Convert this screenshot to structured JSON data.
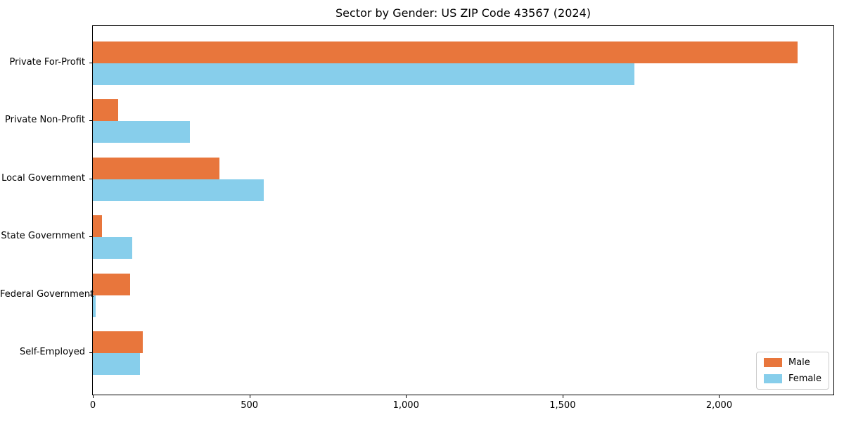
{
  "figure": {
    "title": "Sector by Gender: US ZIP Code 43567 (2024)"
  },
  "chart_data": {
    "type": "bar",
    "orientation": "horizontal",
    "title": "Sector by Gender: US ZIP Code 43567 (2024)",
    "categories": [
      "Private For-Profit",
      "Private Non-Profit",
      "Local Government",
      "State Government",
      "Federal Government",
      "Self-Employed"
    ],
    "series": [
      {
        "name": "Male",
        "color": "#e8763c",
        "values": [
          2250,
          80,
          405,
          30,
          120,
          160
        ]
      },
      {
        "name": "Female",
        "color": "#87ceeb",
        "values": [
          1730,
          310,
          545,
          125,
          10,
          150
        ]
      }
    ],
    "xlabel": "",
    "ylabel": "",
    "xlim": [
      0,
      2365
    ],
    "xticks": [
      0,
      500,
      1000,
      1500,
      2000
    ],
    "xtick_labels": [
      "0",
      "500",
      "1,000",
      "1,500",
      "2,000"
    ],
    "grid": false,
    "legend_position": "lower right",
    "background": "#ffffff",
    "spine_color": "#000000"
  }
}
